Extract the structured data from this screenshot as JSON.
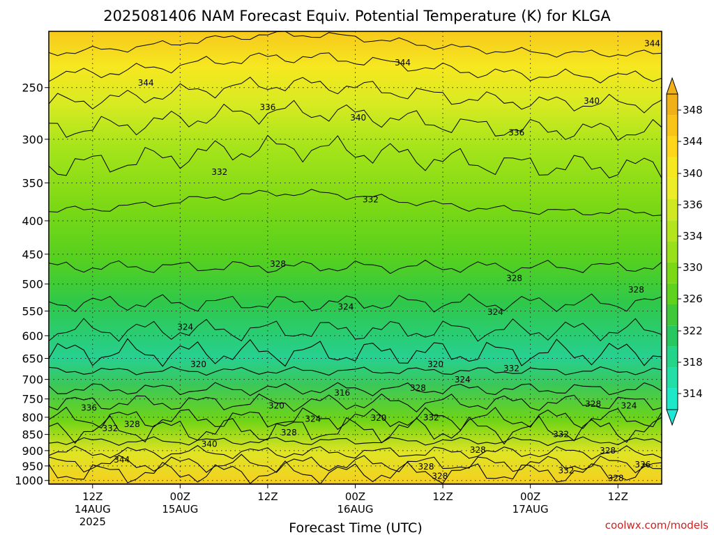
{
  "chart_data": {
    "type": "contour",
    "title": "2025081406 NAM Forecast Equiv. Potential Temperature (K) for KLGA",
    "xlabel": "Forecast Time (UTC)",
    "ylabel": "",
    "y_scale": "log",
    "y_inverted": true,
    "y_ticks": [
      250,
      300,
      350,
      400,
      450,
      500,
      550,
      600,
      650,
      700,
      750,
      800,
      850,
      900,
      950,
      1000
    ],
    "y_tick_labels": [
      "250",
      "300",
      "350",
      "400",
      "450",
      "500",
      "550",
      "600",
      "650",
      "700",
      "750",
      "800",
      "850",
      "900",
      "950",
      "1000"
    ],
    "ylim": [
      1013,
      205
    ],
    "x_ticks": [
      {
        "hour": 12,
        "line1": "12Z",
        "line2": "14AUG",
        "line3": "2025"
      },
      {
        "hour": 24,
        "line1": "00Z",
        "line2": "15AUG",
        "line3": ""
      },
      {
        "hour": 36,
        "line1": "12Z",
        "line2": "",
        "line3": ""
      },
      {
        "hour": 48,
        "line1": "00Z",
        "line2": "16AUG",
        "line3": ""
      },
      {
        "hour": 60,
        "line1": "12Z",
        "line2": "",
        "line3": ""
      },
      {
        "hour": 72,
        "line1": "00Z",
        "line2": "17AUG",
        "line3": ""
      },
      {
        "hour": 84,
        "line1": "12Z",
        "line2": "",
        "line3": ""
      }
    ],
    "xlim": [
      6,
      90
    ],
    "grid": true,
    "colorbar": {
      "levels": [
        314,
        316,
        318,
        320,
        322,
        324,
        326,
        328,
        330,
        332,
        334,
        336,
        338,
        340,
        342,
        344,
        346,
        348
      ],
      "labels": [
        "314",
        "318",
        "322",
        "326",
        "330",
        "334",
        "336",
        "340",
        "344",
        "348"
      ],
      "colors": [
        "#1de8c8",
        "#22dfa8",
        "#24d488",
        "#28c860",
        "#3fc93a",
        "#5ed21c",
        "#7ad914",
        "#98e01a",
        "#b4e41c",
        "#d0e822",
        "#ecec28",
        "#f6e820",
        "#ffd61a",
        "#f8c418",
        "#f0b018"
      ]
    },
    "contour_labels": [
      {
        "value": "344",
        "hour": 88.7,
        "p": 214
      },
      {
        "value": "344",
        "hour": 54.5,
        "p": 229
      },
      {
        "value": "344",
        "hour": 19.3,
        "p": 246
      },
      {
        "value": "340",
        "hour": 80.4,
        "p": 262
      },
      {
        "value": "336",
        "hour": 36.0,
        "p": 268
      },
      {
        "value": "340",
        "hour": 48.4,
        "p": 278
      },
      {
        "value": "336",
        "hour": 70.1,
        "p": 293
      },
      {
        "value": "332",
        "hour": 29.4,
        "p": 337
      },
      {
        "value": "332",
        "hour": 50.1,
        "p": 371
      },
      {
        "value": "328",
        "hour": 37.4,
        "p": 466
      },
      {
        "value": "328",
        "hour": 69.8,
        "p": 490
      },
      {
        "value": "328",
        "hour": 86.5,
        "p": 510
      },
      {
        "value": "324",
        "hour": 46.7,
        "p": 542
      },
      {
        "value": "324",
        "hour": 67.2,
        "p": 552
      },
      {
        "value": "324",
        "hour": 24.7,
        "p": 582
      },
      {
        "value": "320",
        "hour": 26.5,
        "p": 664
      },
      {
        "value": "320",
        "hour": 59.0,
        "p": 664
      },
      {
        "value": "332",
        "hour": 69.4,
        "p": 674
      },
      {
        "value": "324",
        "hour": 62.7,
        "p": 701
      },
      {
        "value": "328",
        "hour": 56.6,
        "p": 722
      },
      {
        "value": "316",
        "hour": 46.2,
        "p": 734
      },
      {
        "value": "328",
        "hour": 80.6,
        "p": 764
      },
      {
        "value": "324",
        "hour": 85.5,
        "p": 768
      },
      {
        "value": "336",
        "hour": 11.5,
        "p": 774
      },
      {
        "value": "320",
        "hour": 37.2,
        "p": 768
      },
      {
        "value": "332",
        "hour": 58.4,
        "p": 801
      },
      {
        "value": "324",
        "hour": 42.2,
        "p": 805
      },
      {
        "value": "320",
        "hour": 51.2,
        "p": 802
      },
      {
        "value": "332",
        "hour": 14.4,
        "p": 832
      },
      {
        "value": "328",
        "hour": 17.4,
        "p": 820
      },
      {
        "value": "328",
        "hour": 38.9,
        "p": 845
      },
      {
        "value": "332",
        "hour": 76.2,
        "p": 850
      },
      {
        "value": "340",
        "hour": 28.0,
        "p": 880
      },
      {
        "value": "328",
        "hour": 64.8,
        "p": 898
      },
      {
        "value": "328",
        "hour": 82.6,
        "p": 900
      },
      {
        "value": "344",
        "hour": 16.0,
        "p": 930
      },
      {
        "value": "328",
        "hour": 57.7,
        "p": 953
      },
      {
        "value": "332",
        "hour": 76.9,
        "p": 966
      },
      {
        "value": "336",
        "hour": 87.4,
        "p": 946
      },
      {
        "value": "328",
        "hour": 59.6,
        "p": 985
      },
      {
        "value": "328",
        "hour": 83.7,
        "p": 992
      }
    ],
    "surface_pressure": 1000,
    "surface_color": "#9c4a24"
  },
  "credit": "coolwx.com/models"
}
